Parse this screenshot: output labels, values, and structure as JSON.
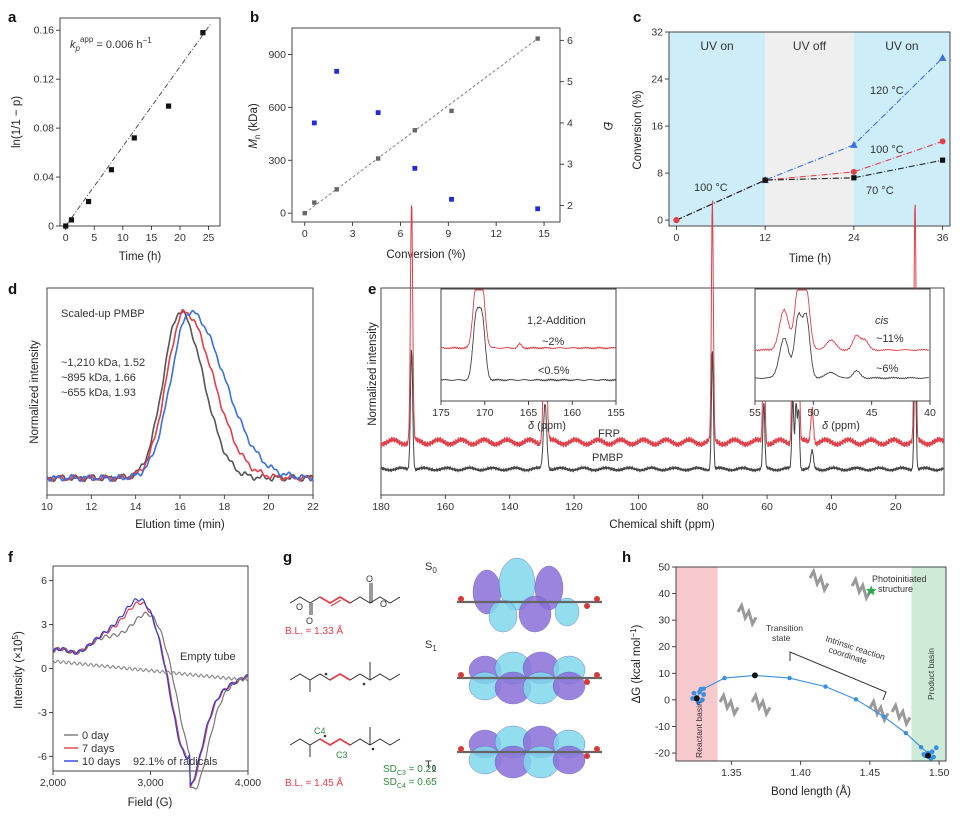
{
  "colors": {
    "black": "#333333",
    "red": "#e0404a",
    "blue": "#3a6fe0",
    "pt_blue": "#1f2bd9",
    "pt_gray": "#666666",
    "cyan_bg": "#cdeef8",
    "gray_bg": "#efefef",
    "pink_bg": "#f7c9cc",
    "green_bg": "#cdebd6",
    "orb_cyan": "#7fd8ec",
    "orb_purple": "#8a6fd8"
  },
  "panel_a": {
    "label": "a",
    "chart_data": {
      "type": "scatter",
      "xlabel": "Time (h)",
      "ylabel": "ln(1/1 − p)",
      "xlim": [
        -1,
        27
      ],
      "ylim": [
        0,
        0.17
      ],
      "xticks": [
        0,
        5,
        10,
        15,
        20,
        25
      ],
      "yticks": [
        0,
        0.04,
        0.08,
        0.12,
        0.16
      ],
      "ytick_labels": [
        "0",
        "0.04",
        "0.08",
        "0.12",
        "0.16"
      ],
      "x": [
        0,
        1,
        4,
        8,
        12,
        18,
        24
      ],
      "y": [
        0.0,
        0.005,
        0.02,
        0.046,
        0.072,
        0.098,
        0.158
      ],
      "fit": {
        "x": [
          0,
          25.5
        ],
        "y": [
          0.0,
          0.166
        ]
      },
      "annotation_k": "k",
      "annotation_sub": "p",
      "annotation_sup": "app",
      "annotation_value": " = 0.006 h",
      "annotation_exp": "−1"
    }
  },
  "panel_b": {
    "label": "b",
    "chart_data": {
      "type": "scatter",
      "xlabel": "Conversion (%)",
      "ylabel": "M",
      "ylabel_sub": "n",
      "ylabel_rest": " (kDa)",
      "y2label": "Đ",
      "xlim": [
        -0.8,
        16
      ],
      "ylim": [
        -50,
        1050
      ],
      "y2lim": [
        1.6,
        6.3
      ],
      "xticks": [
        0,
        3,
        6,
        9,
        12,
        15
      ],
      "yticks": [
        0,
        300,
        600,
        900
      ],
      "y2ticks": [
        2,
        3,
        4,
        5,
        6
      ],
      "series": [
        {
          "name": "Mn",
          "x": [
            0,
            0.6,
            2,
            4.6,
            6.9,
            9.2,
            14.6
          ],
          "y": [
            0,
            60,
            135,
            310,
            470,
            580,
            990
          ]
        },
        {
          "name": "Đ",
          "x": [
            0.6,
            2,
            4.6,
            6.9,
            9.2,
            14.6
          ],
          "y": [
            4.0,
            5.25,
            4.25,
            2.9,
            2.15,
            1.92
          ]
        }
      ],
      "fit": {
        "x": [
          0,
          14.6
        ],
        "y": [
          0,
          990
        ]
      }
    }
  },
  "panel_c": {
    "label": "c",
    "chart_data": {
      "type": "line",
      "xlabel": "Time (h)",
      "ylabel": "Conversion (%)",
      "xlim": [
        -1,
        37
      ],
      "ylim": [
        -1,
        32
      ],
      "xticks": [
        0,
        12,
        24,
        36
      ],
      "yticks": [
        0,
        8,
        16,
        24,
        32
      ],
      "regions": [
        {
          "label": "UV on",
          "from": -1,
          "to": 12
        },
        {
          "label": "UV off",
          "from": 12,
          "to": 24
        },
        {
          "label": "UV on",
          "from": 24,
          "to": 37
        }
      ],
      "series": [
        {
          "name": "120 °C",
          "x": [
            0,
            12,
            24,
            36
          ],
          "y": [
            0,
            6.8,
            12.8,
            27.6
          ]
        },
        {
          "name": "100 °C",
          "x": [
            0,
            12,
            24,
            36
          ],
          "y": [
            0,
            6.8,
            8.2,
            13.4
          ]
        },
        {
          "name": "70 °C",
          "x": [
            0,
            12,
            24,
            36
          ],
          "y": [
            0,
            6.8,
            7.2,
            10.2
          ]
        }
      ],
      "labels": {
        "l120": "120 °C",
        "l100": "100 °C",
        "l70": "70 °C",
        "l100left": "100 °C"
      }
    }
  },
  "panel_d": {
    "label": "d",
    "chart_data": {
      "type": "line",
      "xlabel": "Elution time (min)",
      "ylabel": "Normalized intensity",
      "xlim": [
        10,
        22
      ],
      "xticks": [
        10,
        12,
        14,
        16,
        18,
        20,
        22
      ],
      "title": "Scaled-up PMBP",
      "series": [
        {
          "name": "~1,210 kDa, 1.52",
          "peak": 16.0,
          "sigL": 0.75,
          "sigR": 1.05
        },
        {
          "name": "~895 kDa, 1.66",
          "peak": 16.2,
          "sigL": 0.8,
          "sigR": 1.3
        },
        {
          "name": "~655 kDa, 1.93",
          "peak": 16.45,
          "sigL": 0.85,
          "sigR": 1.55
        }
      ]
    }
  },
  "panel_e": {
    "label": "e",
    "chart_data": {
      "type": "line",
      "xlabel": "Chemical shift (ppm)",
      "ylabel": "Normalized intensity",
      "xlim": [
        180,
        5
      ],
      "xticks": [
        180,
        160,
        140,
        120,
        100,
        80,
        60,
        40,
        20
      ],
      "series": [
        {
          "name": "FRP"
        },
        {
          "name": "PMBP"
        }
      ],
      "peaks_ppm": [
        170.5,
        129,
        77,
        61,
        52,
        51,
        50,
        14
      ],
      "inset1": {
        "xlabel": "δ (ppm)",
        "xticks": [
          175,
          170,
          165,
          160,
          155
        ],
        "title": "1,2-Addition",
        "red_value": "~2%",
        "black_value": "<0.5%"
      },
      "inset2": {
        "xlabel": "δ (ppm)",
        "xticks": [
          55,
          50,
          45,
          40
        ],
        "title": "cis",
        "red_value": "~11%",
        "black_value": "~6%"
      }
    }
  },
  "panel_f": {
    "label": "f",
    "chart_data": {
      "type": "line",
      "xlabel": "Field (G)",
      "ylabel": "Intensity (×10",
      "ylabel_exp": "5",
      "ylabel_end": ")",
      "xlim": [
        2000,
        4000
      ],
      "ylim": [
        -7,
        7
      ],
      "xticks": [
        2000,
        3000,
        4000
      ],
      "xtick_labels": [
        "2,000",
        "3,000",
        "4,000"
      ],
      "yticks": [
        -6,
        -3,
        0,
        3,
        6
      ],
      "series": [
        {
          "name": "0 day"
        },
        {
          "name": "7 days"
        },
        {
          "name": "10 days"
        },
        {
          "name": "Empty tube"
        }
      ],
      "empty_label": "Empty tube",
      "footnote": "92.1% of radicals"
    }
  },
  "panel_g": {
    "label": "g",
    "states": [
      {
        "S": "S",
        "sub": "0",
        "bl": "B.L. = 1.33 Å"
      },
      {
        "S": "S",
        "sub": "1"
      },
      {
        "S": "T",
        "sub": "0",
        "bl": "B.L. = 1.45 Å",
        "c4": "C4",
        "c3": "C3",
        "sd1": "SD",
        "sd1sub": "C3",
        "sd1val": " = 0.21",
        "sd2": "SD",
        "sd2sub": "C4",
        "sd2val": " = 0.65"
      }
    ]
  },
  "panel_h": {
    "label": "h",
    "chart_data": {
      "type": "line",
      "xlabel": "Bond length (Å)",
      "ylabel": "ΔG (kcal mol",
      "ylabel_exp": "−1",
      "ylabel_end": ")",
      "xlim": [
        1.31,
        1.505
      ],
      "ylim": [
        -23,
        50
      ],
      "xticks": [
        1.35,
        1.4,
        1.45,
        1.5
      ],
      "xtick_labels": [
        "1.35",
        "1.40",
        "1.45",
        "1.50"
      ],
      "yticks": [
        -20,
        -10,
        0,
        10,
        20,
        30,
        40,
        50
      ],
      "irc_x": [
        1.324,
        1.33,
        1.345,
        1.367,
        1.392,
        1.418,
        1.44,
        1.46,
        1.476,
        1.487,
        1.493
      ],
      "irc_y": [
        0.5,
        4.2,
        8.2,
        9.2,
        8.2,
        5.0,
        0.2,
        -6.3,
        -12.5,
        -17.8,
        -20.5
      ],
      "reactant_cluster": [
        [
          1.325,
          1
        ],
        [
          1.327,
          3
        ],
        [
          1.323,
          2.5
        ],
        [
          1.329,
          0
        ],
        [
          1.326,
          -1
        ],
        [
          1.322,
          0.5
        ],
        [
          1.33,
          2
        ],
        [
          1.328,
          4
        ]
      ],
      "product_cluster": [
        [
          1.49,
          -21
        ],
        [
          1.492,
          -20
        ],
        [
          1.494,
          -22
        ],
        [
          1.496,
          -21.5
        ],
        [
          1.498,
          -18
        ],
        [
          1.489,
          -20.5
        ],
        [
          1.495,
          -19.5
        ]
      ],
      "ts": [
        1.367,
        9.2
      ],
      "reactant_pt": [
        1.325,
        0.5
      ],
      "product_pt": [
        1.492,
        -21
      ],
      "star": [
        1.451,
        41
      ],
      "labels": {
        "reactant": "Reactant basin",
        "product": "Product basin",
        "ts_1": "Transition",
        "ts_2": "state",
        "irc_1": "Intrinsic reaction",
        "irc_2": "coordinate",
        "photo_1": "Photoinitiated",
        "photo_2": "structure"
      }
    }
  }
}
